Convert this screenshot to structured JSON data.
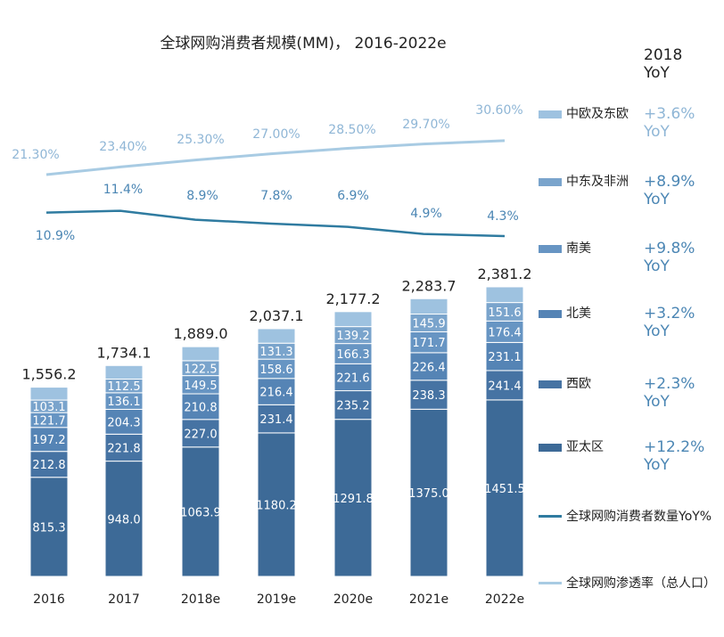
{
  "chart_data": {
    "type": "bar",
    "title": "全球网购消费者规模(MM)， 2016-2022e",
    "categories": [
      "2016",
      "2017",
      "2018e",
      "2019e",
      "2020e",
      "2021e",
      "2022e"
    ],
    "series": [
      {
        "name": "亚太区",
        "values": [
          815.3,
          948.0,
          1063.9,
          1180.2,
          1291.8,
          1375.0,
          1451.5
        ],
        "value_labels": [
          "815.3",
          "948.0",
          "1063.9",
          "1180.2",
          "1291.8",
          "1375.0",
          "1451.5"
        ]
      },
      {
        "name": "西欧",
        "values": [
          212.8,
          221.8,
          227.0,
          231.4,
          235.2,
          238.3,
          241.4
        ],
        "value_labels": [
          "212.8",
          "221.8",
          "227.0",
          "231.4",
          "235.2",
          "238.3",
          "241.4"
        ]
      },
      {
        "name": "北美",
        "values": [
          197.2,
          204.3,
          210.8,
          216.4,
          221.6,
          226.4,
          231.1
        ],
        "value_labels": [
          "197.2",
          "204.3",
          "210.8",
          "216.4",
          "221.6",
          "226.4",
          "231.1"
        ]
      },
      {
        "name": "南美",
        "values": [
          121.7,
          136.1,
          149.5,
          158.6,
          166.3,
          171.7,
          176.4
        ],
        "value_labels": [
          "121.7",
          "136.1",
          "149.5",
          "158.6",
          "166.3",
          "171.7",
          "176.4"
        ]
      },
      {
        "name": "中东及非洲",
        "values": [
          103.1,
          112.5,
          122.5,
          131.3,
          139.2,
          145.9,
          151.6
        ],
        "value_labels": [
          "103.1",
          "112.5",
          "122.5",
          "131.3",
          "139.2",
          "145.9",
          "151.6"
        ]
      },
      {
        "name": "中欧及东欧",
        "values": [
          106.1,
          111.4,
          115.3,
          119.2,
          123.1,
          126.4,
          129.2
        ]
      }
    ],
    "totals": [
      "1,556.2",
      "1,734.1",
      "1,889.0",
      "2,037.1",
      "2,177.2",
      "2,283.7",
      "2,381.2"
    ],
    "total_values": [
      1556.2,
      1734.1,
      1889.0,
      2037.1,
      2177.2,
      2283.7,
      2381.2
    ],
    "lines": [
      {
        "name": "全球网购渗透率（总人口）",
        "values": [
          21.3,
          23.4,
          25.3,
          27.0,
          28.5,
          29.7,
          30.6
        ],
        "labels": [
          "21.30%",
          "23.40%",
          "25.30%",
          "27.00%",
          "28.50%",
          "29.70%",
          "30.60%"
        ]
      },
      {
        "name": "全球网购消费者数量YoY%",
        "values": [
          10.9,
          11.4,
          8.9,
          7.8,
          6.9,
          4.9,
          4.3
        ],
        "labels": [
          "10.9%",
          "11.4%",
          "8.9%",
          "7.8%",
          "6.9%",
          "4.9%",
          "4.3%"
        ]
      }
    ],
    "yoy_header": [
      "2018",
      "YoY"
    ],
    "legend_yoy": {
      "中欧及东欧": "+3.6%",
      "中东及非洲": "+8.9%",
      "南美": "+9.8%",
      "北美": "+3.2%",
      "西欧": "+2.3%",
      "亚太区": "+12.2%"
    },
    "yoy_word": "YoY",
    "colors": {
      "亚太区": "#3d6a97",
      "西欧": "#4673a3",
      "北美": "#5584b5",
      "南美": "#6795c3",
      "中东及非洲": "#7aa4cc",
      "中欧及东欧": "#9ec2e0",
      "line_yoy": "#2f7ba0",
      "line_penetration": "#a8cbe3",
      "label_blue": "#4b86b4",
      "label_light": "#8fb6d6"
    },
    "legend_placement": "right",
    "grid": false
  }
}
